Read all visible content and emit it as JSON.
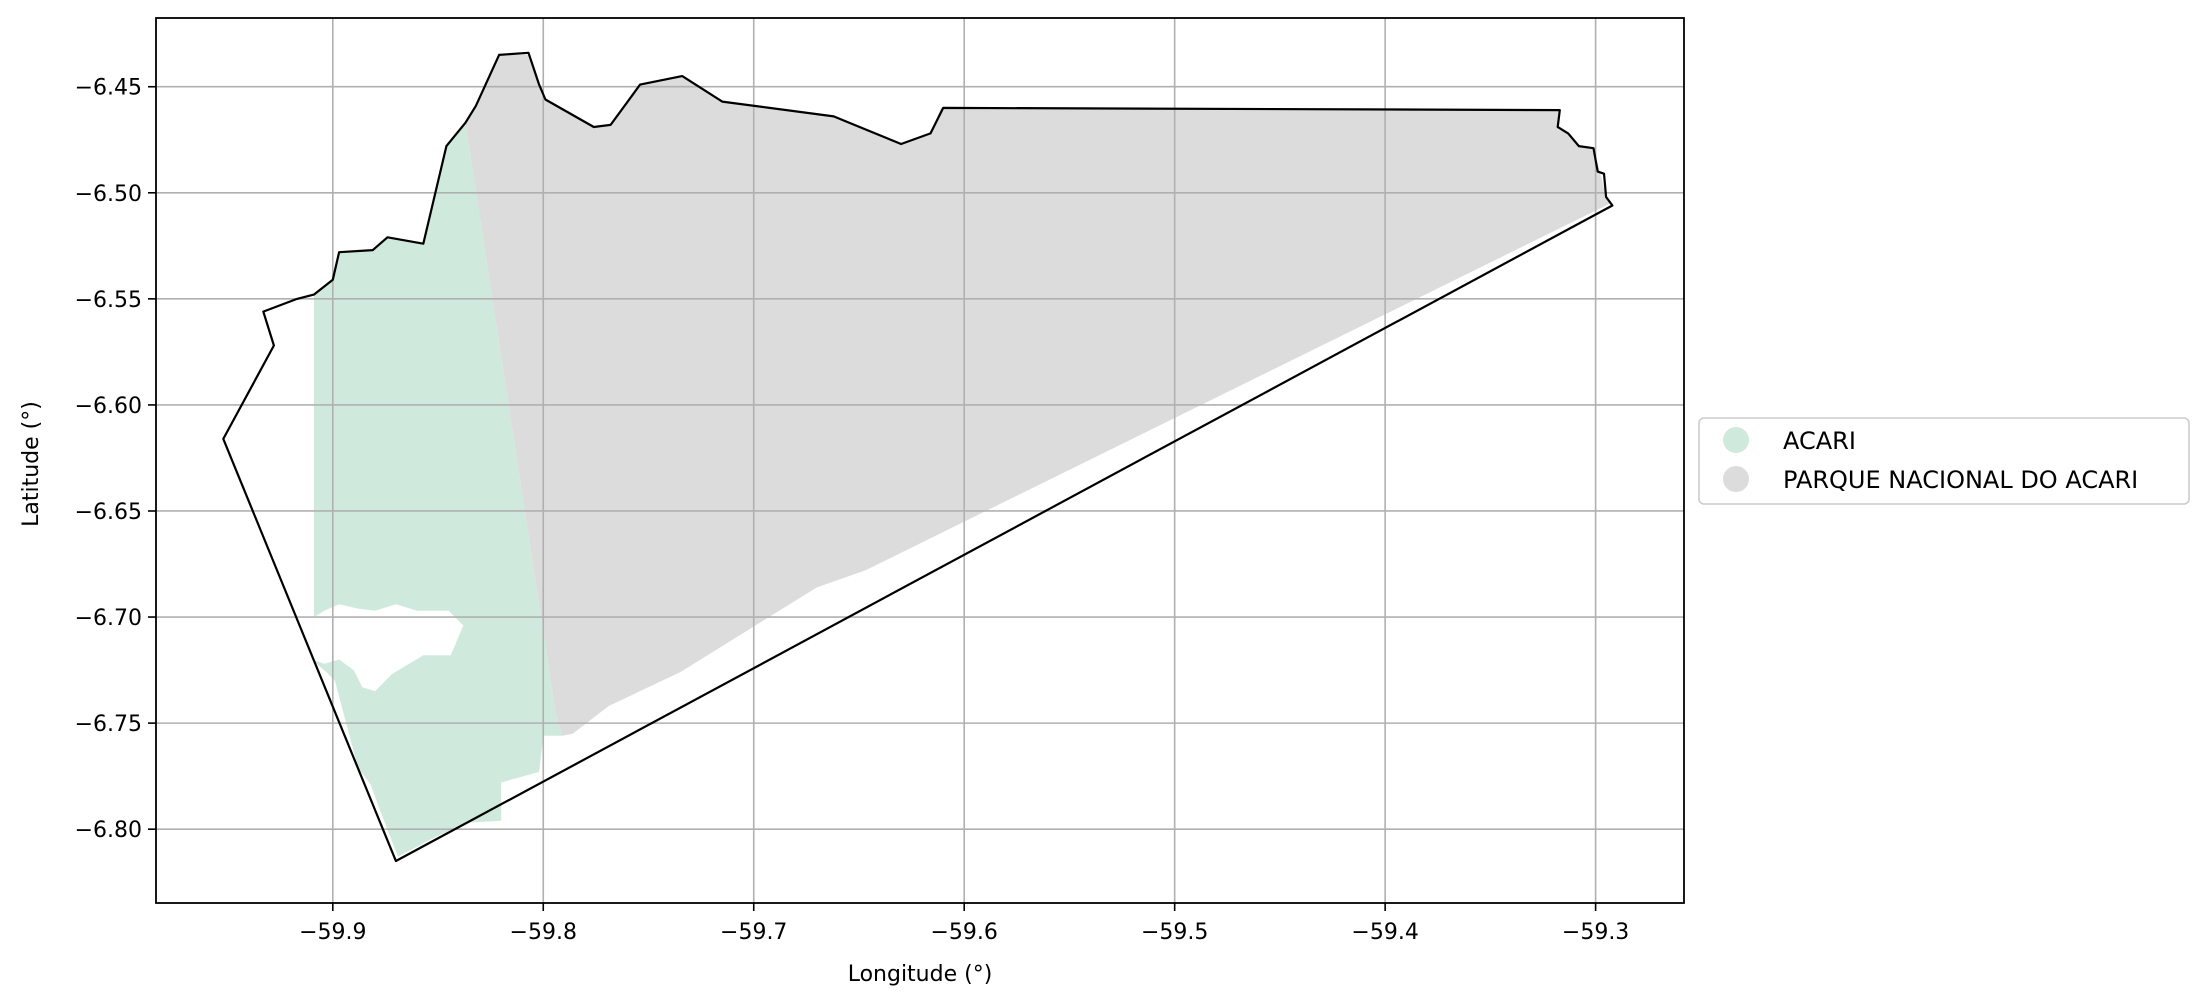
{
  "map": {
    "type": "choropleth",
    "xlabel": "Longitude (°)",
    "ylabel": "Latitude (°)",
    "xlim": [
      -59.984,
      -59.258
    ],
    "ylim": [
      -6.8348,
      -6.4176
    ],
    "grid": true,
    "legend_placement": "outside-right",
    "x_ticks": [
      {
        "value": -59.9,
        "label": "−59.9"
      },
      {
        "value": -59.8,
        "label": "−59.8"
      },
      {
        "value": -59.7,
        "label": "−59.7"
      },
      {
        "value": -59.6,
        "label": "−59.6"
      },
      {
        "value": -59.5,
        "label": "−59.5"
      },
      {
        "value": -59.4,
        "label": "−59.4"
      },
      {
        "value": -59.3,
        "label": "−59.3"
      }
    ],
    "y_ticks": [
      {
        "value": -6.45,
        "label": "−6.45"
      },
      {
        "value": -6.5,
        "label": "−6.50"
      },
      {
        "value": -6.55,
        "label": "−6.55"
      },
      {
        "value": -6.6,
        "label": "−6.60"
      },
      {
        "value": -6.65,
        "label": "−6.65"
      },
      {
        "value": -6.7,
        "label": "−6.70"
      },
      {
        "value": -6.75,
        "label": "−6.75"
      },
      {
        "value": -6.8,
        "label": "−6.80"
      }
    ],
    "legend": [
      {
        "label": "ACARI",
        "color": "#cfeadd"
      },
      {
        "label": "PARQUE NACIONAL DO ACARI",
        "color": "#dcdcdc"
      }
    ],
    "regions": [
      {
        "name": "ACARI",
        "color": "#cfeadd",
        "coordinates": [
          [
            -59.909,
            -6.548
          ],
          [
            -59.9,
            -6.541
          ],
          [
            -59.897,
            -6.528
          ],
          [
            -59.881,
            -6.527
          ],
          [
            -59.874,
            -6.521
          ],
          [
            -59.857,
            -6.524
          ],
          [
            -59.846,
            -6.478
          ],
          [
            -59.837,
            -6.467
          ],
          [
            -59.794,
            -6.746
          ],
          [
            -59.791,
            -6.756
          ],
          [
            -59.8,
            -6.756
          ],
          [
            -59.802,
            -6.773
          ],
          [
            -59.82,
            -6.778
          ],
          [
            -59.82,
            -6.796
          ],
          [
            -59.836,
            -6.797
          ],
          [
            -59.852,
            -6.804
          ],
          [
            -59.869,
            -6.813
          ],
          [
            -59.878,
            -6.79
          ],
          [
            -59.882,
            -6.779
          ],
          [
            -59.888,
            -6.771
          ],
          [
            -59.899,
            -6.73
          ],
          [
            -59.903,
            -6.726
          ],
          [
            -59.91,
            -6.72
          ],
          [
            -59.909,
            -6.7
          ],
          [
            -59.909,
            -6.62
          ]
        ]
      },
      {
        "name": "ACARI",
        "color": "#ffffff",
        "coordinates": [
          [
            -59.909,
            -6.7
          ],
          [
            -59.904,
            -6.697
          ],
          [
            -59.897,
            -6.694
          ],
          [
            -59.888,
            -6.696
          ],
          [
            -59.88,
            -6.697
          ],
          [
            -59.87,
            -6.694
          ],
          [
            -59.86,
            -6.697
          ],
          [
            -59.845,
            -6.697
          ],
          [
            -59.838,
            -6.704
          ],
          [
            -59.844,
            -6.718
          ],
          [
            -59.857,
            -6.718
          ],
          [
            -59.872,
            -6.727
          ],
          [
            -59.88,
            -6.735
          ],
          [
            -59.886,
            -6.733
          ],
          [
            -59.89,
            -6.725
          ],
          [
            -59.897,
            -6.72
          ],
          [
            -59.904,
            -6.722
          ],
          [
            -59.91,
            -6.72
          ]
        ]
      },
      {
        "name": "PARQUE NACIONAL DO ACARI",
        "color": "#dcdcdc",
        "coordinates": [
          [
            -59.837,
            -6.467
          ],
          [
            -59.832,
            -6.459
          ],
          [
            -59.821,
            -6.435
          ],
          [
            -59.807,
            -6.435
          ],
          [
            -59.802,
            -6.45
          ],
          [
            -59.8,
            -6.456
          ],
          [
            -59.776,
            -6.469
          ],
          [
            -59.768,
            -6.468
          ],
          [
            -59.755,
            -6.449
          ],
          [
            -59.735,
            -6.445
          ],
          [
            -59.716,
            -6.457
          ],
          [
            -59.663,
            -6.464
          ],
          [
            -59.63,
            -6.477
          ],
          [
            -59.616,
            -6.472
          ],
          [
            -59.611,
            -6.46
          ],
          [
            -59.317,
            -6.461
          ],
          [
            -59.318,
            -6.47
          ],
          [
            -59.313,
            -6.472
          ],
          [
            -59.307,
            -6.478
          ],
          [
            -59.301,
            -6.479
          ],
          [
            -59.298,
            -6.49
          ],
          [
            -59.295,
            -6.502
          ],
          [
            -59.293,
            -6.505
          ],
          [
            -59.647,
            -6.678
          ],
          [
            -59.67,
            -6.686
          ],
          [
            -59.735,
            -6.726
          ],
          [
            -59.769,
            -6.742
          ],
          [
            -59.786,
            -6.755
          ],
          [
            -59.791,
            -6.756
          ],
          [
            -59.794,
            -6.746
          ]
        ]
      }
    ],
    "outline": [
      [
        -59.837,
        -6.467
      ],
      [
        -59.832,
        -6.459
      ],
      [
        -59.821,
        -6.435
      ],
      [
        -59.807,
        -6.434
      ],
      [
        -59.802,
        -6.449
      ],
      [
        -59.799,
        -6.456
      ],
      [
        -59.776,
        -6.469
      ],
      [
        -59.768,
        -6.468
      ],
      [
        -59.754,
        -6.449
      ],
      [
        -59.734,
        -6.445
      ],
      [
        -59.715,
        -6.457
      ],
      [
        -59.662,
        -6.464
      ],
      [
        -59.63,
        -6.477
      ],
      [
        -59.616,
        -6.472
      ],
      [
        -59.61,
        -6.46
      ],
      [
        -59.317,
        -6.461
      ],
      [
        -59.318,
        -6.469
      ],
      [
        -59.313,
        -6.472
      ],
      [
        -59.308,
        -6.478
      ],
      [
        -59.301,
        -6.479
      ],
      [
        -59.299,
        -6.49
      ],
      [
        -59.296,
        -6.491
      ],
      [
        -59.295,
        -6.502
      ],
      [
        -59.292,
        -6.506
      ],
      [
        -59.87,
        -6.815
      ],
      [
        -59.952,
        -6.616
      ],
      [
        -59.928,
        -6.572
      ],
      [
        -59.933,
        -6.556
      ],
      [
        -59.917,
        -6.55
      ],
      [
        -59.909,
        -6.548
      ],
      [
        -59.9,
        -6.541
      ],
      [
        -59.897,
        -6.528
      ],
      [
        -59.881,
        -6.527
      ],
      [
        -59.874,
        -6.521
      ],
      [
        -59.857,
        -6.524
      ],
      [
        -59.846,
        -6.478
      ]
    ],
    "outline_color": "#000000"
  }
}
